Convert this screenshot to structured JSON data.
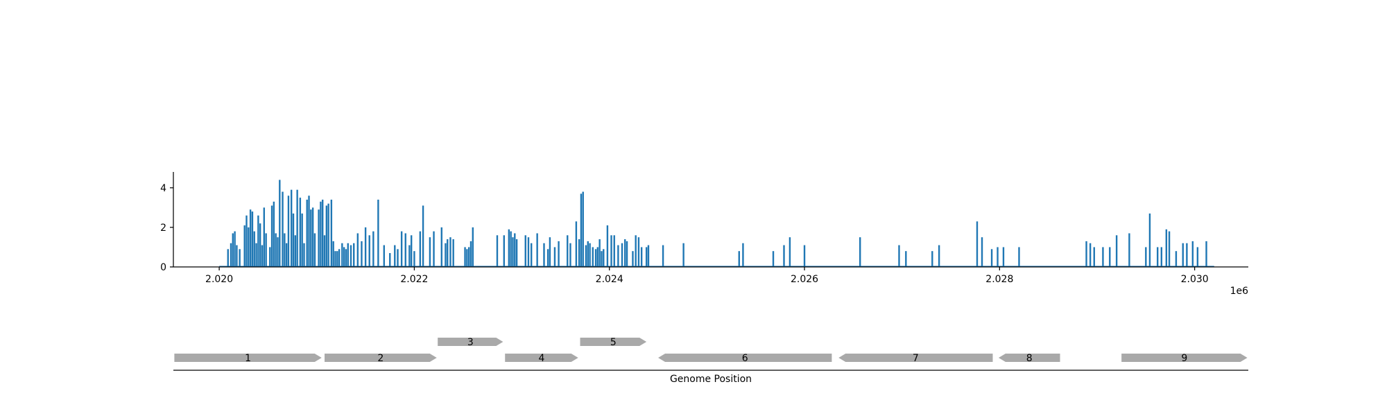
{
  "chart_data": [
    {
      "type": "bar",
      "title": "",
      "xlabel": "",
      "ylabel": "",
      "x_scale_label": "1e6",
      "xlim": [
        2019530,
        2030550
      ],
      "ylim": [
        0,
        4.8
      ],
      "x_ticks": [
        2020000,
        2022000,
        2024000,
        2026000,
        2028000,
        2030000
      ],
      "x_tick_labels": [
        "2.020",
        "2.022",
        "2.024",
        "2.026",
        "2.028",
        "2.030"
      ],
      "y_ticks": [
        0,
        2,
        4
      ],
      "y_tick_labels": [
        "0",
        "2",
        "4"
      ],
      "baseline_range": [
        2020000,
        2030200
      ],
      "color": "#1f77b4",
      "grid": false,
      "series": [
        {
          "x": [
            2020090,
            2020120,
            2020140,
            2020160,
            2020180,
            2020210,
            2020260,
            2020280,
            2020300,
            2020320,
            2020340,
            2020360,
            2020380,
            2020400,
            2020420,
            2020440,
            2020460,
            2020480,
            2020520,
            2020540,
            2020560,
            2020580,
            2020600,
            2020620,
            2020650,
            2020670,
            2020690,
            2020710,
            2020740,
            2020760,
            2020780,
            2020800,
            2020830,
            2020850,
            2020870,
            2020900,
            2020920,
            2020940,
            2020960,
            2020980,
            2021020,
            2021040,
            2021060,
            2021080,
            2021100,
            2021120,
            2021150,
            2021170,
            2021190,
            2021210,
            2021230,
            2021260,
            2021280,
            2021300,
            2021320,
            2021350,
            2021380,
            2021420,
            2021460,
            2021500,
            2021540,
            2021580,
            2021630,
            2021690,
            2021750,
            2021800,
            2021830,
            2021870,
            2021910,
            2021950,
            2021970,
            2022000,
            2022060,
            2022090,
            2022160,
            2022200,
            2022280,
            2022320,
            2022340,
            2022370,
            2022400,
            2022520,
            2022540,
            2022560,
            2022580,
            2022600,
            2022850,
            2022920,
            2022970,
            2022990,
            2023010,
            2023030,
            2023050,
            2023140,
            2023170,
            2023200,
            2023260,
            2023330,
            2023370,
            2023390,
            2023440,
            2023480,
            2023570,
            2023600,
            2023660,
            2023690,
            2023710,
            2023730,
            2023760,
            2023780,
            2023800,
            2023830,
            2023860,
            2023880,
            2023900,
            2023920,
            2023940,
            2023980,
            2024020,
            2024050,
            2024090,
            2024130,
            2024160,
            2024180,
            2024240,
            2024270,
            2024300,
            2024330,
            2024380,
            2024400,
            2024550,
            2024760,
            2025330,
            2025370,
            2025680,
            2025790,
            2025850,
            2026000,
            2026570,
            2026970,
            2027040,
            2027310,
            2027380,
            2027770,
            2027820,
            2027920,
            2027980,
            2028040,
            2028200,
            2028890,
            2028930,
            2028970,
            2029060,
            2029130,
            2029200,
            2029330,
            2029500,
            2029540,
            2029620,
            2029660,
            2029710,
            2029740,
            2029810,
            2029880,
            2029920,
            2029980,
            2030030,
            2030120
          ],
          "values": [
            0.9,
            1.2,
            1.7,
            1.8,
            1.1,
            0.9,
            2.1,
            2.6,
            2.0,
            2.9,
            2.8,
            1.8,
            1.2,
            2.6,
            2.2,
            1.1,
            3.0,
            1.7,
            1.0,
            3.1,
            3.3,
            1.7,
            1.5,
            4.4,
            3.8,
            1.7,
            1.2,
            3.6,
            3.9,
            2.7,
            1.6,
            3.9,
            3.5,
            2.7,
            1.2,
            3.4,
            3.6,
            2.9,
            3.0,
            1.7,
            2.9,
            3.3,
            3.4,
            1.6,
            3.1,
            3.2,
            3.4,
            1.3,
            0.8,
            0.8,
            0.9,
            1.2,
            1.0,
            0.9,
            1.2,
            1.1,
            1.2,
            1.7,
            1.3,
            2.0,
            1.6,
            1.8,
            3.4,
            1.1,
            0.7,
            1.1,
            0.9,
            1.8,
            1.7,
            1.1,
            1.6,
            0.8,
            1.8,
            3.1,
            1.5,
            1.8,
            2.0,
            1.2,
            1.4,
            1.5,
            1.4,
            1.0,
            0.9,
            1.0,
            1.3,
            2.0,
            1.6,
            1.6,
            1.9,
            1.8,
            1.5,
            1.7,
            1.4,
            1.6,
            1.5,
            1.2,
            1.7,
            1.2,
            0.9,
            1.5,
            1.0,
            1.3,
            1.6,
            1.2,
            2.3,
            1.4,
            3.7,
            3.8,
            1.1,
            1.3,
            1.2,
            1.0,
            0.9,
            1.0,
            1.4,
            0.8,
            0.9,
            2.1,
            1.6,
            1.6,
            1.1,
            1.2,
            1.4,
            1.3,
            0.8,
            1.6,
            1.5,
            1.0,
            1.0,
            1.1,
            1.1,
            1.2,
            0.8,
            1.2,
            0.8,
            1.1,
            1.5,
            1.1,
            1.5,
            1.1,
            0.8,
            0.8,
            1.1,
            2.3,
            1.5,
            0.9,
            1.0,
            1.0,
            1.0,
            1.3,
            1.2,
            1.0,
            1.0,
            1.0,
            1.6,
            1.7,
            1.0,
            2.7,
            1.0,
            1.0,
            1.9,
            1.8,
            0.8,
            1.2,
            1.2,
            1.3,
            1.0,
            1.3
          ]
        }
      ]
    },
    {
      "type": "gene-map",
      "xlabel": "Genome Position",
      "color": "#a9a9a9",
      "genes": [
        {
          "label": "1",
          "start": 2019540,
          "end": 2021050,
          "strand": "+",
          "row": 0
        },
        {
          "label": "2",
          "start": 2021080,
          "end": 2022230,
          "strand": "+",
          "row": 0
        },
        {
          "label": "3",
          "start": 2022240,
          "end": 2022910,
          "strand": "+",
          "row": 1
        },
        {
          "label": "4",
          "start": 2022930,
          "end": 2023680,
          "strand": "+",
          "row": 0
        },
        {
          "label": "5",
          "start": 2023700,
          "end": 2024380,
          "strand": "+",
          "row": 1
        },
        {
          "label": "6",
          "start": 2024500,
          "end": 2026280,
          "strand": "-",
          "row": 0
        },
        {
          "label": "7",
          "start": 2026350,
          "end": 2027930,
          "strand": "-",
          "row": 0
        },
        {
          "label": "8",
          "start": 2027990,
          "end": 2028620,
          "strand": "-",
          "row": 0
        },
        {
          "label": "9",
          "start": 2029250,
          "end": 2030540,
          "strand": "+",
          "row": 0
        }
      ]
    }
  ]
}
